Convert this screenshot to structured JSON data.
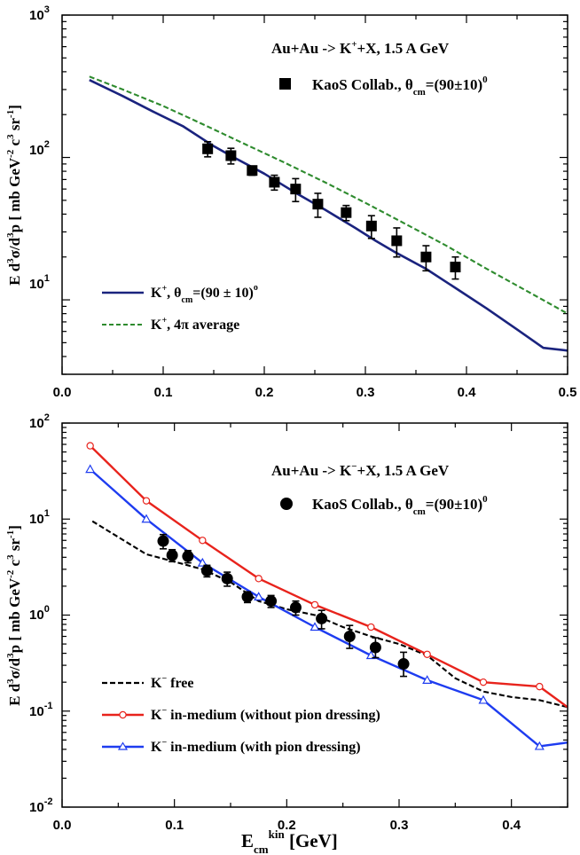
{
  "chart_data": [
    {
      "type": "line",
      "annotation": "Au+Au -> K+X, 1.5 A GeV",
      "ylabel": "E d3σ/d3p [ mb GeV-2 c3 sr-1]",
      "xlim": [
        0.0,
        0.5
      ],
      "ylim": [
        3,
        1000
      ],
      "yscale": "log",
      "x_ticks": [
        "0.0",
        "0.1",
        "0.2",
        "0.3",
        "0.4",
        "0.5"
      ],
      "y_ticks": [
        "10",
        "10²",
        "10³"
      ],
      "legend_placement": "bottom-left",
      "series": [
        {
          "name": "K+, θcm=(90 ± 10)°",
          "style": "solid",
          "color": "#1a237e",
          "x": [
            0.027,
            0.06,
            0.09,
            0.12,
            0.15,
            0.17,
            0.2,
            0.23,
            0.26,
            0.29,
            0.31,
            0.33,
            0.36,
            0.39,
            0.42,
            0.45,
            0.476,
            0.5
          ],
          "y": [
            350,
            270,
            210,
            165,
            120,
            100,
            77,
            57,
            43,
            32,
            26,
            21.5,
            16.5,
            12,
            8.7,
            6.2,
            4.6,
            4.4
          ]
        },
        {
          "name": "K+, 4π average",
          "style": "dashed",
          "color": "#2e8b2e",
          "x": [
            0.027,
            0.06,
            0.1,
            0.14,
            0.18,
            0.22,
            0.26,
            0.3,
            0.34,
            0.38,
            0.42,
            0.46,
            0.5
          ],
          "y": [
            370,
            300,
            230,
            170,
            125,
            92,
            67,
            48,
            34,
            24,
            16.5,
            11.5,
            8
          ]
        },
        {
          "name": "KaoS Collab., θcm=(90±10)°",
          "style": "marker-square",
          "color": "#000000",
          "x": [
            0.144,
            0.167,
            0.188,
            0.21,
            0.231,
            0.253,
            0.281,
            0.306,
            0.331,
            0.36,
            0.389
          ],
          "y": [
            115,
            103,
            81,
            67,
            60,
            47,
            41,
            33,
            26,
            20,
            17
          ],
          "err": [
            14,
            13,
            6,
            8,
            11,
            9,
            5,
            6,
            6,
            4,
            3
          ]
        }
      ]
    },
    {
      "type": "line",
      "annotation": "Au+Au -> K−+X, 1.5 A GeV",
      "xlabel": "Ecm kin [GeV]",
      "ylabel": "E d3σ/d3p [ mb GeV-2 c3 sr-1]",
      "xlim": [
        0.0,
        0.45
      ],
      "ylim": [
        0.01,
        100
      ],
      "yscale": "log",
      "x_ticks": [
        "0.0",
        "0.1",
        "0.2",
        "0.3",
        "0.4"
      ],
      "y_ticks": [
        "10⁻²",
        "10⁻¹",
        "10⁰",
        "10¹",
        "10²"
      ],
      "legend_placement": "bottom-left",
      "series": [
        {
          "name": "K− free",
          "style": "dashed",
          "color": "#000000",
          "x": [
            0.027,
            0.05,
            0.075,
            0.1,
            0.125,
            0.15,
            0.175,
            0.2,
            0.225,
            0.25,
            0.275,
            0.3,
            0.325,
            0.35,
            0.375,
            0.4,
            0.425,
            0.45
          ],
          "y": [
            9.5,
            6.5,
            4.3,
            3.6,
            3.0,
            2.2,
            1.4,
            1.15,
            1.0,
            0.75,
            0.6,
            0.5,
            0.38,
            0.22,
            0.16,
            0.14,
            0.13,
            0.11
          ]
        },
        {
          "name": "K− in-medium (without pion dressing)",
          "style": "solid-open-circle",
          "color": "#e8231c",
          "x": [
            0.025,
            0.075,
            0.125,
            0.175,
            0.225,
            0.275,
            0.325,
            0.375,
            0.425,
            0.45
          ],
          "y": [
            58,
            15.5,
            6.0,
            2.4,
            1.28,
            0.75,
            0.39,
            0.2,
            0.18,
            0.11
          ],
          "markers_x": [
            0.025,
            0.075,
            0.125,
            0.175,
            0.225,
            0.275,
            0.325,
            0.375,
            0.425
          ]
        },
        {
          "name": "K− in-medium (with pion dressing)",
          "style": "solid-open-triangle",
          "color": "#1e3cf0",
          "x": [
            0.025,
            0.075,
            0.125,
            0.175,
            0.225,
            0.275,
            0.325,
            0.375,
            0.425,
            0.45
          ],
          "y": [
            33,
            10,
            3.5,
            1.55,
            0.75,
            0.38,
            0.21,
            0.13,
            0.043,
            0.047
          ],
          "markers_x": [
            0.025,
            0.075,
            0.125,
            0.175,
            0.225,
            0.275,
            0.325,
            0.375,
            0.425
          ]
        },
        {
          "name": "KaoS Collab., θcm=(90±10)°",
          "style": "marker-circle",
          "color": "#000000",
          "x": [
            0.09,
            0.098,
            0.112,
            0.129,
            0.147,
            0.165,
            0.186,
            0.208,
            0.231,
            0.256,
            0.279,
            0.304
          ],
          "y": [
            5.9,
            4.2,
            4.1,
            2.9,
            2.4,
            1.55,
            1.4,
            1.2,
            0.92,
            0.6,
            0.46,
            0.31
          ],
          "err_lo": [
            1.0,
            0.6,
            0.6,
            0.4,
            0.4,
            0.2,
            0.2,
            0.2,
            0.2,
            0.15,
            0.1,
            0.08
          ],
          "err_hi": [
            1.0,
            0.6,
            0.6,
            0.4,
            0.4,
            0.2,
            0.2,
            0.2,
            0.2,
            0.18,
            0.12,
            0.1
          ]
        }
      ]
    }
  ]
}
